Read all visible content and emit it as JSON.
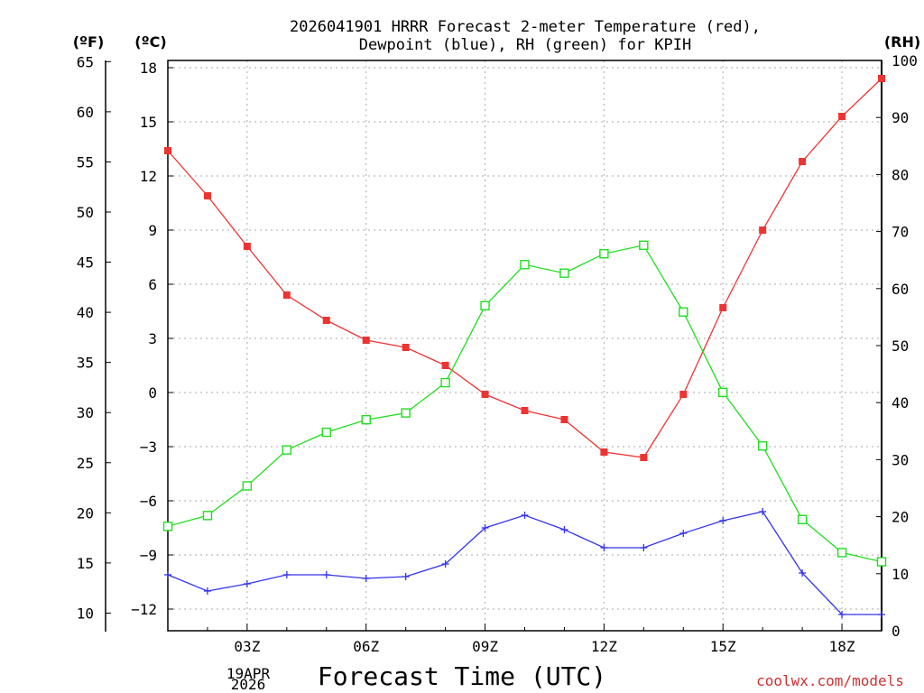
{
  "chart_data": {
    "type": "line",
    "title_line1": "2026041901 HRRR Forecast 2-meter Temperature (red),",
    "title_line2": "Dewpoint (blue), RH (green) for KPIH",
    "xlabel": "Forecast Time (UTC)",
    "credit": "coolwx.com/models",
    "x_ticks": [
      "03Z",
      "06Z",
      "09Z",
      "12Z",
      "15Z",
      "18Z"
    ],
    "x_date_line1": "19APR",
    "x_date_line2": "2026",
    "x_hours": [
      1,
      2,
      3,
      4,
      5,
      6,
      7,
      8,
      9,
      10,
      11,
      12,
      13,
      14,
      15,
      16,
      17,
      18,
      19
    ],
    "xlim": [
      1,
      19
    ],
    "x_tick_hours": [
      3,
      6,
      9,
      12,
      15,
      18
    ],
    "axis_f": {
      "unit": "(ºF)",
      "ticks": [
        "65",
        "60",
        "55",
        "50",
        "45",
        "40",
        "35",
        "30",
        "25",
        "20",
        "15",
        "10"
      ]
    },
    "axis_c": {
      "unit": "(ºC)",
      "ylim": [
        -13.2,
        18.4
      ],
      "ticks": [
        "18",
        "15",
        "12",
        "9",
        "6",
        "3",
        "0",
        "−3",
        "−6",
        "−9",
        "−12"
      ]
    },
    "axis_rh": {
      "unit": "(RH)",
      "ylim": [
        0,
        100
      ],
      "ticks": [
        "100",
        "90",
        "80",
        "70",
        "60",
        "50",
        "40",
        "30",
        "20",
        "10",
        "0"
      ]
    },
    "series": [
      {
        "name": "Temperature",
        "axis": "c",
        "color": "#ee3333",
        "marker": "square-filled",
        "values": [
          13.4,
          10.9,
          8.1,
          5.4,
          4.0,
          2.9,
          2.5,
          1.5,
          -0.1,
          -1.0,
          -1.5,
          -3.3,
          -3.6,
          -0.1,
          4.7,
          9.0,
          12.8,
          15.3,
          17.4
        ]
      },
      {
        "name": "Dewpoint",
        "axis": "c",
        "color": "#3333ee",
        "marker": "plus",
        "values": [
          -10.1,
          -11.0,
          -10.6,
          -10.1,
          -10.1,
          -10.3,
          -10.2,
          -9.5,
          -7.5,
          -6.8,
          -7.6,
          -8.6,
          -8.6,
          -7.8,
          -7.1,
          -6.6,
          -10.0,
          -12.3,
          -12.3
        ]
      },
      {
        "name": "RH",
        "axis": "rh",
        "color": "#22dd22",
        "marker": "square-open",
        "values": [
          18.3,
          20.2,
          25.4,
          31.7,
          34.8,
          37.0,
          38.2,
          43.5,
          57.0,
          64.2,
          62.7,
          66.1,
          67.6,
          55.9,
          41.8,
          32.4,
          19.5,
          13.7,
          12.1
        ]
      }
    ]
  }
}
